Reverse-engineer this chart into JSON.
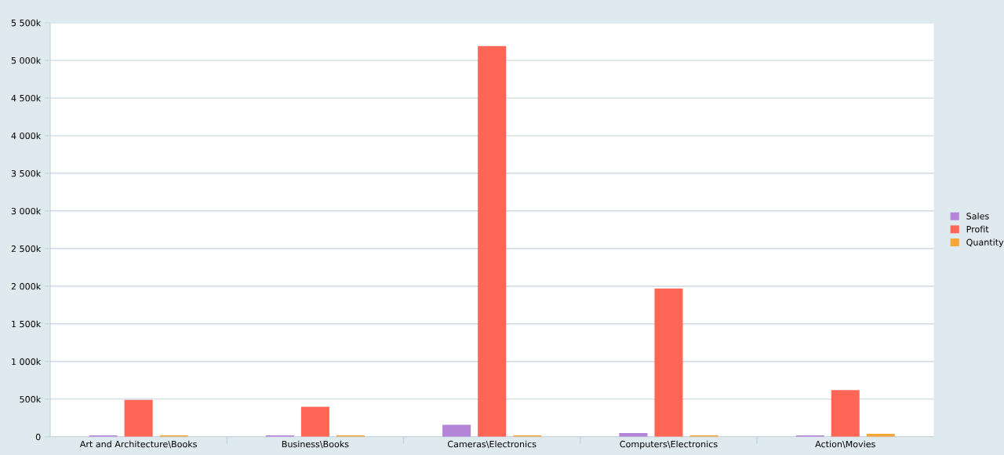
{
  "chart_data": {
    "type": "bar",
    "categories": [
      "Art and Architecture\\Books",
      "Business\\Books",
      "Cameras\\Electronics",
      "Computers\\Electronics",
      "Action\\Movies"
    ],
    "series": [
      {
        "name": "Sales",
        "color": "#b384d8",
        "values": [
          20,
          20,
          160,
          50,
          20
        ]
      },
      {
        "name": "Profit",
        "color": "#ff6656",
        "values": [
          490,
          400,
          5190,
          1970,
          620
        ]
      },
      {
        "name": "Quantity",
        "color": "#f5a53a",
        "values": [
          20,
          20,
          20,
          20,
          40
        ]
      }
    ],
    "ylim": [
      0,
      5500
    ],
    "yticks": [
      {
        "value": 0,
        "label": "0"
      },
      {
        "value": 500,
        "label": "500k"
      },
      {
        "value": 1000,
        "label": "1 000k"
      },
      {
        "value": 1500,
        "label": "1 500k"
      },
      {
        "value": 2000,
        "label": "2 000k"
      },
      {
        "value": 2500,
        "label": "2 500k"
      },
      {
        "value": 3000,
        "label": "3 000k"
      },
      {
        "value": 3500,
        "label": "3 500k"
      },
      {
        "value": 4000,
        "label": "4 000k"
      },
      {
        "value": 4500,
        "label": "4 500k"
      },
      {
        "value": 5000,
        "label": "5 000k"
      },
      {
        "value": 5500,
        "label": "5 500k"
      }
    ],
    "grid": "y",
    "legend": "right"
  }
}
